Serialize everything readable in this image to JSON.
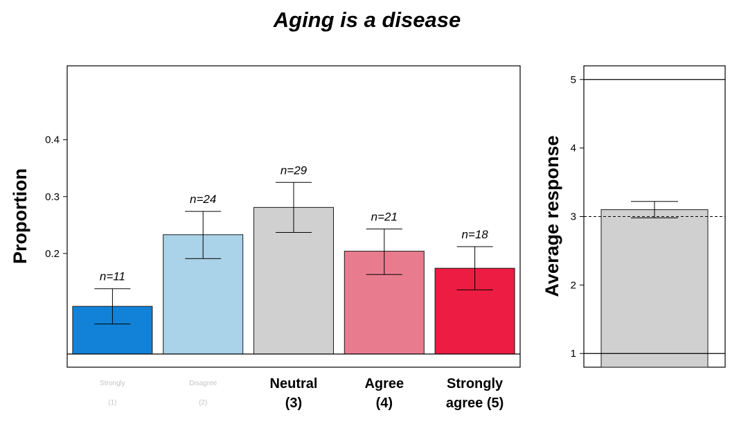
{
  "chart_data": [
    {
      "type": "bar",
      "title": "Aging is a disease",
      "ylabel": "Proportion",
      "xlabel": "",
      "ylim": [
        0.0,
        0.53
      ],
      "yticks": [
        "0.2",
        "0.3",
        "0.4"
      ],
      "yticks_values": [
        0.2,
        0.3,
        0.4
      ],
      "grid": false,
      "categories": [
        {
          "line1": "",
          "line2": "",
          "faded1": "Strongly",
          "faded2": "(1)"
        },
        {
          "line1": "",
          "line2": "",
          "faded1": "Disagree",
          "faded2": "(2)"
        },
        {
          "line1": "Neutral",
          "line2": "(3)",
          "faded1": "",
          "faded2": ""
        },
        {
          "line1": "Agree",
          "line2": "(4)",
          "faded1": "",
          "faded2": ""
        },
        {
          "line1": "Strongly",
          "line2": "agree (5)",
          "faded1": "",
          "faded2": ""
        }
      ],
      "values": [
        0.107,
        0.233,
        0.281,
        0.204,
        0.174
      ],
      "error_low": [
        0.076,
        0.191,
        0.237,
        0.163,
        0.136
      ],
      "error_high": [
        0.138,
        0.274,
        0.325,
        0.243,
        0.212
      ],
      "n_labels": [
        "n=11",
        "n=24",
        "n=29",
        "n=21",
        "n=18"
      ],
      "colors": [
        "#1282d8",
        "#aad2e8",
        "#d0d0d0",
        "#e87c8e",
        "#ec1c42"
      ]
    },
    {
      "type": "bar",
      "title": "",
      "ylabel": "Average response",
      "xlabel": "",
      "ylim": [
        0.8,
        5.2
      ],
      "yticks": [
        "1",
        "2",
        "3",
        "4",
        "5"
      ],
      "yticks_values": [
        1,
        2,
        3,
        4,
        5
      ],
      "grid": false,
      "value": 3.1,
      "error_low": 2.98,
      "error_high": 3.22,
      "reference_line": 3,
      "hlines": [
        1,
        5
      ],
      "color": "#d0d0d0"
    }
  ]
}
